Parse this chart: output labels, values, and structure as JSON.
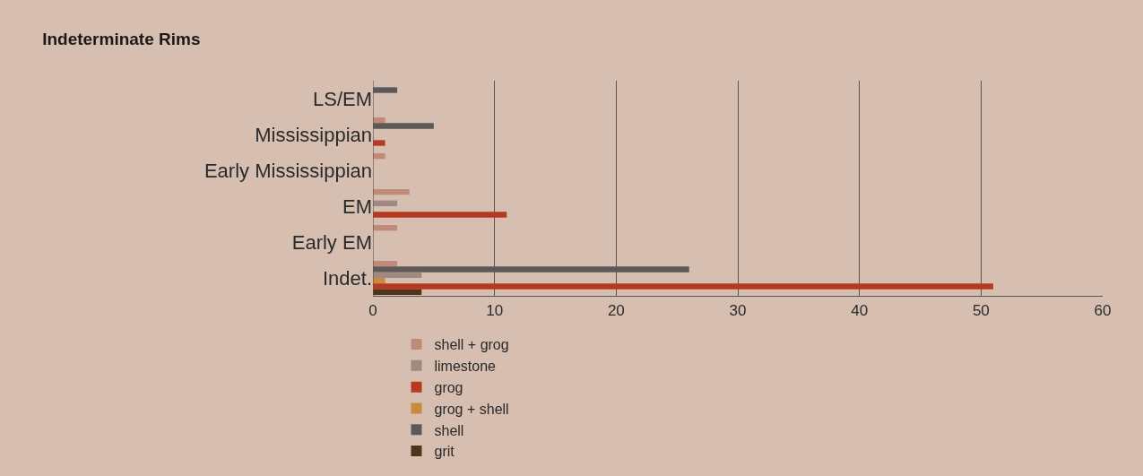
{
  "chart_data": {
    "type": "bar",
    "orientation": "horizontal",
    "title": "Indeterminate Rims",
    "categories": [
      "LS/EM",
      "Mississippian",
      "Early Mississippian",
      "EM",
      "Early EM",
      "Indet."
    ],
    "series": [
      {
        "name": "shell + grog",
        "color": "#c08a78",
        "values": [
          null,
          1,
          1,
          3,
          2,
          2
        ]
      },
      {
        "name": "shell",
        "color": "#5e5858",
        "values": [
          2,
          5,
          null,
          null,
          null,
          26
        ]
      },
      {
        "name": "limestone",
        "color": "#9e8a80",
        "values": [
          null,
          null,
          null,
          2,
          null,
          4
        ]
      },
      {
        "name": "grog + shell",
        "color": "#c98a3c",
        "values": [
          null,
          null,
          null,
          null,
          null,
          1
        ]
      },
      {
        "name": "grog",
        "color": "#b63a22",
        "values": [
          null,
          1,
          null,
          11,
          null,
          51
        ]
      },
      {
        "name": "grit",
        "color": "#4e3418",
        "values": [
          null,
          null,
          null,
          null,
          null,
          4
        ]
      }
    ],
    "xlim": [
      0,
      60
    ],
    "xticks": [
      0,
      10,
      20,
      30,
      40,
      50,
      60
    ],
    "grid": "x",
    "legend": "bottom"
  }
}
